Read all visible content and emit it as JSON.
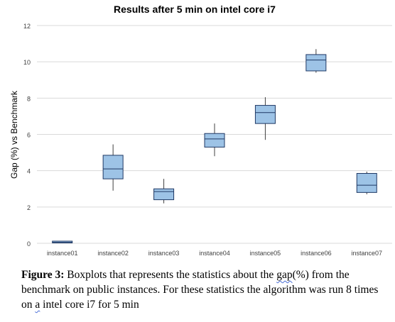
{
  "chart_data": {
    "type": "boxplot",
    "title": "Results after 5 min on intel core i7",
    "ylabel": "Gap (%) vs Benchmark",
    "xlabel": "",
    "ylim": [
      0,
      12
    ],
    "yticks": [
      "0",
      "2",
      "4",
      "6",
      "8",
      "10",
      "12"
    ],
    "grid": true,
    "categories": [
      "instance01",
      "instance02",
      "instance03",
      "instance04",
      "instance05",
      "instance06",
      "instance07"
    ],
    "boxes": [
      {
        "min": 0.0,
        "q1": 0.02,
        "median": 0.05,
        "q3": 0.1,
        "max": 0.1
      },
      {
        "min": 2.9,
        "q1": 3.55,
        "median": 4.1,
        "q3": 4.85,
        "max": 5.45
      },
      {
        "min": 2.2,
        "q1": 2.4,
        "median": 2.85,
        "q3": 3.0,
        "max": 3.55
      },
      {
        "min": 4.8,
        "q1": 5.3,
        "median": 5.75,
        "q3": 6.05,
        "max": 6.6
      },
      {
        "min": 5.7,
        "q1": 6.6,
        "median": 7.2,
        "q3": 7.6,
        "max": 8.05
      },
      {
        "min": 9.4,
        "q1": 9.5,
        "median": 10.1,
        "q3": 10.4,
        "max": 10.7
      },
      {
        "min": 2.7,
        "q1": 2.8,
        "median": 3.2,
        "q3": 3.85,
        "max": 3.95
      }
    ],
    "colors": {
      "box_fill": "#9dc3e6",
      "box_edge": "#1f3864",
      "grid": "#d9d9d9",
      "whisker": "#404040"
    }
  },
  "caption": {
    "label": "Figure 3:",
    "t1": " Boxplots that represents the statistics about the ",
    "t2": "gap",
    "t3": "(%) from the benchmark on public instances. For these statistics the algorithm was run 8 times on ",
    "t4": "a",
    "t5": " intel core i7 for 5 min"
  }
}
